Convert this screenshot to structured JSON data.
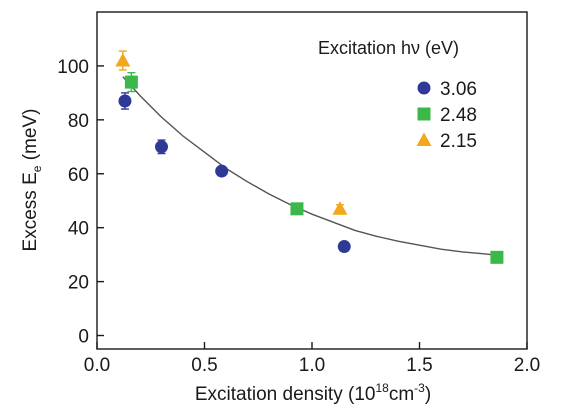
{
  "chart_data": {
    "type": "scatter",
    "xlabel": {
      "main": "Excitation density (10",
      "sup1": "18",
      "mid": "cm",
      "sup2": "-3",
      "end": ")"
    },
    "ylabel": {
      "main": "Excess E",
      "sub": "e",
      "end": " (meV)"
    },
    "xlim": [
      0,
      2.0
    ],
    "ylim": [
      -5,
      120
    ],
    "xticks": [
      0.0,
      0.5,
      1.0,
      1.5,
      2.0
    ],
    "xtick_labels": [
      "0.0",
      "0.5",
      "1.0",
      "1.5",
      "2.0"
    ],
    "yticks": [
      0,
      20,
      40,
      60,
      80,
      100
    ],
    "ytick_labels": [
      "0",
      "20",
      "40",
      "60",
      "80",
      "100"
    ],
    "grid": false,
    "legend": {
      "title": "Excitation hν (eV)",
      "placement": "top-right"
    },
    "series": [
      {
        "name": "3.06",
        "marker": "circle",
        "color": "#2e3a96",
        "points": [
          {
            "x": 0.13,
            "y": 87,
            "err": 3
          },
          {
            "x": 0.3,
            "y": 70,
            "err": 2.5
          },
          {
            "x": 0.58,
            "y": 61,
            "err": 0
          },
          {
            "x": 1.15,
            "y": 33,
            "err": 0
          }
        ]
      },
      {
        "name": "2.48",
        "marker": "square",
        "color": "#3cb84a",
        "points": [
          {
            "x": 0.16,
            "y": 94,
            "err": 3.5
          },
          {
            "x": 0.93,
            "y": 47,
            "err": 0
          },
          {
            "x": 1.86,
            "y": 29,
            "err": 0
          }
        ]
      },
      {
        "name": "2.15",
        "marker": "triangle",
        "color": "#f3a71b",
        "points": [
          {
            "x": 0.12,
            "y": 102,
            "err": 3.5
          },
          {
            "x": 1.13,
            "y": 47,
            "err": 1.5
          }
        ]
      }
    ],
    "fit_curve": {
      "color": "#555555",
      "points": [
        [
          0.12,
          96
        ],
        [
          0.2,
          89
        ],
        [
          0.3,
          81
        ],
        [
          0.4,
          74
        ],
        [
          0.5,
          68
        ],
        [
          0.6,
          62
        ],
        [
          0.7,
          57
        ],
        [
          0.8,
          52.5
        ],
        [
          0.9,
          48.5
        ],
        [
          1.0,
          45
        ],
        [
          1.1,
          42
        ],
        [
          1.2,
          39
        ],
        [
          1.3,
          36.8
        ],
        [
          1.4,
          35
        ],
        [
          1.5,
          33.5
        ],
        [
          1.6,
          32
        ],
        [
          1.7,
          31
        ],
        [
          1.8,
          30.3
        ],
        [
          1.86,
          29.8
        ]
      ]
    }
  }
}
